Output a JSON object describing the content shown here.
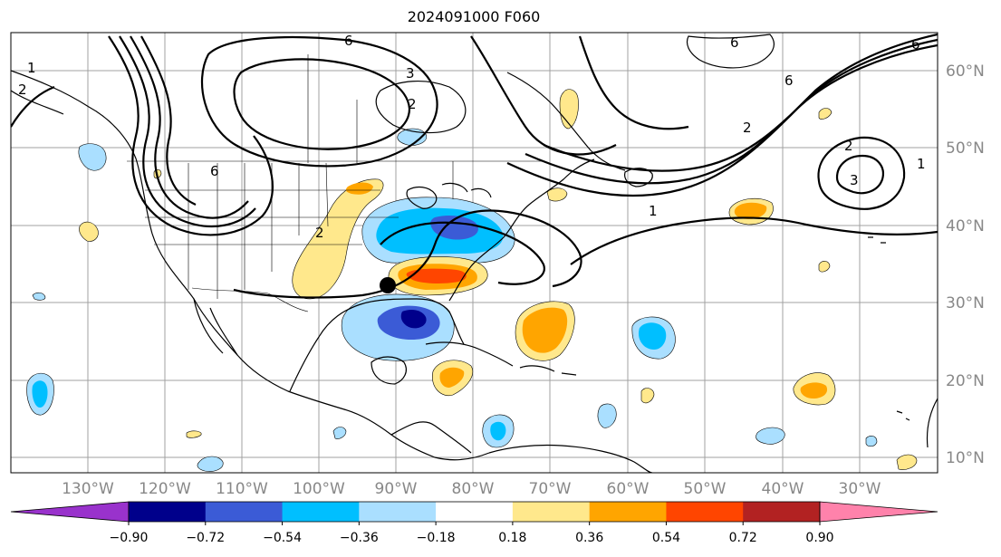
{
  "title": "2024091000 F060",
  "lon_labels": [
    "130°W",
    "120°W",
    "110°W",
    "100°W",
    "90°W",
    "80°W",
    "70°W",
    "60°W",
    "50°W",
    "40°W",
    "30°W"
  ],
  "lat_labels": [
    "60°N",
    "50°N",
    "40°N",
    "30°N",
    "20°N",
    "10°N"
  ],
  "colorbar": {
    "ticks": [
      "−0.90",
      "−0.72",
      "−0.54",
      "−0.36",
      "−0.18",
      "0.18",
      "0.36",
      "0.54",
      "0.72",
      "0.90"
    ],
    "colors": [
      "#9932cc",
      "#00008b",
      "#3b5bd6",
      "#00bfff",
      "#aadfff",
      "#ffffff",
      "#ffe88c",
      "#ffa500",
      "#ff4500",
      "#b22222",
      "#ff82ab"
    ]
  },
  "contour_labels": [
    "6",
    "6",
    "6",
    "3",
    "2",
    "2",
    "2",
    "1",
    "1",
    "1",
    "2",
    "3",
    "6",
    "2",
    "6"
  ],
  "colors": {
    "land_line": "#000000",
    "grid": "#a0a0a0",
    "marker": "#000000"
  }
}
